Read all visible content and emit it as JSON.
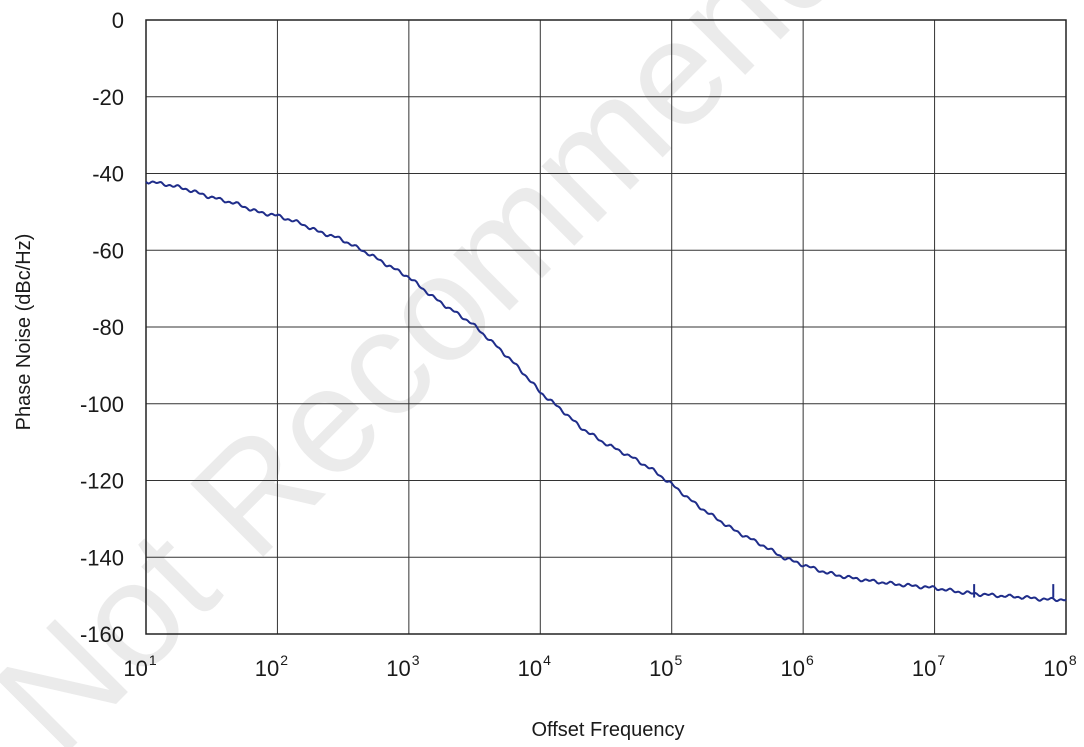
{
  "chart_data": {
    "type": "line",
    "xlabel": "Offset Frequency",
    "ylabel": "Phase Noise (dBc/Hz)",
    "xscale": "log",
    "xlim": [
      10,
      100000000
    ],
    "ylim": [
      -160,
      0
    ],
    "grid": true,
    "legend": "none",
    "line_color": "#1f2d8a",
    "x_ticks": [
      {
        "base": "10",
        "exp": "1"
      },
      {
        "base": "10",
        "exp": "2"
      },
      {
        "base": "10",
        "exp": "3"
      },
      {
        "base": "10",
        "exp": "4"
      },
      {
        "base": "10",
        "exp": "5"
      },
      {
        "base": "10",
        "exp": "6"
      },
      {
        "base": "10",
        "exp": "7"
      },
      {
        "base": "10",
        "exp": "8"
      }
    ],
    "y_ticks": [
      "0",
      "-20",
      "-40",
      "-60",
      "-80",
      "-100",
      "-120",
      "-140",
      "-160"
    ],
    "series": [
      {
        "x": [
          10,
          15,
          20,
          30,
          50,
          70,
          100,
          150,
          200,
          300,
          500,
          700,
          1000,
          1500,
          2000,
          3000,
          5000,
          7000,
          10000,
          15000,
          20000,
          30000,
          50000,
          70000,
          100000,
          150000,
          200000,
          300000,
          500000,
          700000,
          1000000,
          1500000,
          2000000,
          3000000,
          5000000,
          7000000,
          10000000,
          15000000,
          20000000,
          30000000,
          50000000,
          70000000,
          100000000
        ],
        "y": [
          -42,
          -43,
          -44,
          -46,
          -48,
          -50,
          -51,
          -53,
          -55,
          -57,
          -61,
          -64,
          -67,
          -72,
          -75,
          -79,
          -86,
          -91,
          -97,
          -102,
          -106,
          -110,
          -114,
          -117,
          -121,
          -126,
          -129,
          -133,
          -137,
          -140,
          -142,
          -144,
          -145,
          -146,
          -147,
          -147.5,
          -148,
          -149,
          -149.5,
          -150,
          -150.5,
          -151,
          -151
        ]
      }
    ],
    "spikes": [
      {
        "x": 20000000,
        "y": -147
      },
      {
        "x": 80000000,
        "y": -147
      }
    ]
  },
  "watermark": "Not Recommended for"
}
